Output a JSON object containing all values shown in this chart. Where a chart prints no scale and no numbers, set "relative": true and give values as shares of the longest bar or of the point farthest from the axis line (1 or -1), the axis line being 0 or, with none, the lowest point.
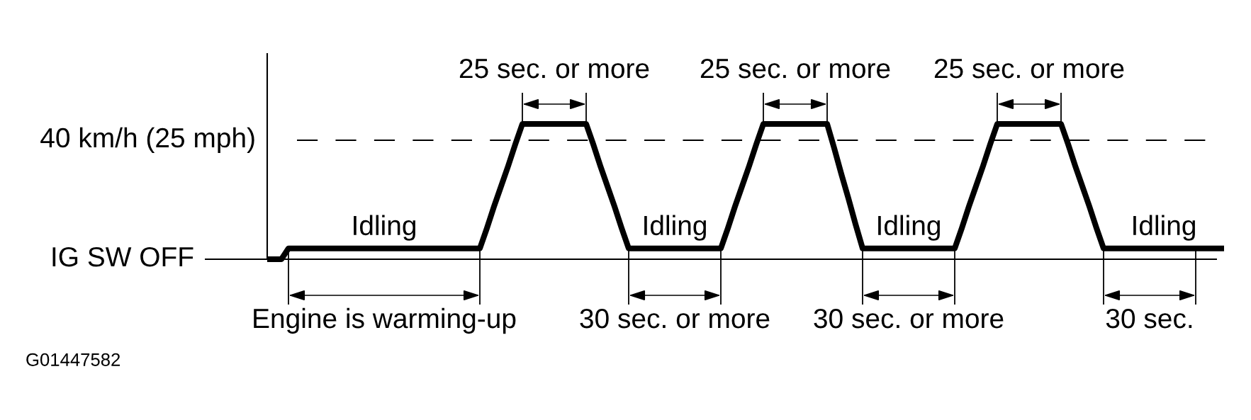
{
  "chart_data": {
    "type": "line",
    "relative": true,
    "tick_labels": false,
    "line_style": "solid",
    "categories": [
      null,
      null,
      null,
      null,
      null,
      null,
      null,
      null,
      null,
      null,
      null,
      null,
      null,
      null,
      null,
      null,
      null,
      null,
      null,
      null,
      null,
      null,
      null,
      null,
      null,
      null,
      null,
      null,
      null,
      null,
      null,
      null,
      null,
      null,
      null,
      null,
      null,
      null,
      null,
      null,
      null,
      null,
      null,
      null,
      null,
      null,
      null,
      null,
      null,
      null,
      null,
      null,
      null,
      null,
      null,
      null,
      null,
      null,
      null,
      null,
      null,
      null,
      null,
      null,
      null,
      null,
      null,
      null,
      null,
      null,
      null,
      null,
      null,
      null,
      null,
      null,
      null,
      null,
      null,
      null,
      null,
      null,
      null,
      null,
      null,
      null,
      null,
      null,
      null,
      null,
      null,
      null,
      null,
      null,
      null,
      null,
      null,
      null,
      null,
      null,
      null,
      null,
      null,
      null,
      null,
      null,
      null,
      null,
      null,
      null,
      null,
      null,
      null,
      null,
      null,
      null,
      null,
      null,
      null,
      null,
      null,
      null,
      null,
      null,
      null,
      null,
      null,
      null,
      null,
      null,
      null,
      null,
      null,
      null,
      null,
      null
    ],
    "series": [
      {
        "color": "#000000",
        "values": [
          0,
          0,
          0,
          0.08,
          0.08,
          0.08,
          0.08,
          0.08,
          0.08,
          0.08,
          0.08,
          0.08,
          0.08,
          0.08,
          0.08,
          0.08,
          0.08,
          0.08,
          0.08,
          0.08,
          0.08,
          0.08,
          0.08,
          0.08,
          0.08,
          0.08,
          0.08,
          0.08,
          0.08,
          0.08,
          0.08,
          0.23,
          0.39,
          0.54,
          0.69,
          0.85,
          1,
          1,
          1,
          1,
          1,
          1,
          1,
          1,
          1,
          1,
          0.85,
          0.69,
          0.54,
          0.39,
          0.23,
          0.08,
          0.08,
          0.08,
          0.08,
          0.08,
          0.08,
          0.08,
          0.08,
          0.08,
          0.08,
          0.08,
          0.08,
          0.08,
          0.08,
          0.23,
          0.39,
          0.54,
          0.69,
          0.85,
          1,
          1,
          1,
          1,
          1,
          1,
          1,
          1,
          1,
          1,
          0.82,
          0.63,
          0.45,
          0.26,
          0.08,
          0.08,
          0.08,
          0.08,
          0.08,
          0.08,
          0.08,
          0.08,
          0.08,
          0.08,
          0.08,
          0.08,
          0.08,
          0.08,
          0.23,
          0.39,
          0.54,
          0.69,
          0.85,
          1,
          1,
          1,
          1,
          1,
          1,
          1,
          1,
          1,
          1,
          0.85,
          0.69,
          0.54,
          0.39,
          0.23,
          0.08,
          0.08,
          0.08,
          0.08,
          0.08,
          0.08,
          0.08,
          0.08,
          0.08,
          0.08,
          0.08,
          0.08,
          0.08,
          0.08,
          0.08,
          0.08,
          0.08,
          0.08
        ]
      }
    ],
    "ref_lines": [
      {
        "axis": "y",
        "value": 0.88,
        "label": "40 km/h (25 mph)",
        "line_style": "dashed",
        "color": "#000000"
      },
      {
        "axis": "y",
        "value": 0,
        "label": "IG SW OFF",
        "line_style": "solid",
        "color": "#000000"
      }
    ],
    "annotations": [
      "25 sec. or more",
      "25 sec. or more",
      "25 sec. or more",
      "Idling",
      "Idling",
      "Idling",
      "Idling",
      "Engine is warming-up",
      "30 sec. or more",
      "30 sec. or more",
      "30 sec.",
      "G01447582"
    ]
  }
}
